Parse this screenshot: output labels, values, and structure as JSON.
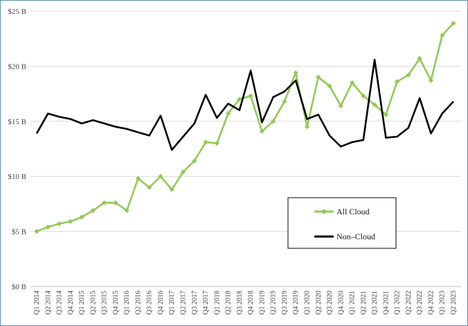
{
  "chart_data": {
    "type": "line",
    "title": "",
    "xlabel": "",
    "ylabel": "",
    "ylim": [
      0,
      25
    ],
    "y_ticks": [
      {
        "value": 0,
        "label": "$0 B"
      },
      {
        "value": 5,
        "label": "$5 B"
      },
      {
        "value": 10,
        "label": "$10 B"
      },
      {
        "value": 15,
        "label": "$15 B"
      },
      {
        "value": 20,
        "label": "$20 B"
      },
      {
        "value": 25,
        "label": "$25 B"
      }
    ],
    "grid": true,
    "legend": "lower-right",
    "categories": [
      "Q1 2014",
      "Q2 2014",
      "Q3 2014",
      "Q4 2014",
      "Q1 2015",
      "Q2 2015",
      "Q3 2015",
      "Q4 2015",
      "Q1 2016",
      "Q2 2016",
      "Q3 2016",
      "Q4 2016",
      "Q1 2017",
      "Q2 2017",
      "Q3 2017",
      "Q4 2017",
      "Q1 2018",
      "Q2 2018",
      "Q3 2018",
      "Q4 2018",
      "Q1 2019",
      "Q2 2019",
      "Q3 2019",
      "Q4 2019",
      "Q1 2020",
      "Q2 2020",
      "Q3 2020",
      "Q4 2020",
      "Q1 2021",
      "Q2 2021",
      "Q3 2021",
      "Q4 2021",
      "Q1 2022",
      "Q2 2022",
      "Q3 2022",
      "Q4 2022",
      "Q1 2023",
      "Q2 2023"
    ],
    "series": [
      {
        "name": "All Cloud",
        "color": "#92c955",
        "marker": "diamond",
        "values": [
          5.0,
          5.4,
          5.7,
          5.9,
          6.3,
          6.9,
          7.6,
          7.6,
          6.9,
          9.8,
          9.0,
          10.0,
          8.8,
          10.4,
          11.4,
          13.1,
          13.0,
          15.7,
          17.0,
          17.3,
          14.1,
          15.0,
          16.8,
          19.4,
          14.5,
          19.0,
          18.2,
          16.4,
          18.5,
          17.3,
          16.5,
          15.6,
          18.6,
          19.2,
          20.7,
          18.7,
          22.8,
          23.9
        ]
      },
      {
        "name": "Non-Cloud",
        "color": "#000000",
        "marker": "none",
        "values": [
          13.9,
          15.7,
          15.4,
          15.2,
          14.8,
          15.1,
          14.8,
          14.5,
          14.3,
          14.0,
          13.7,
          15.5,
          12.4,
          13.6,
          14.8,
          17.4,
          15.3,
          16.6,
          16.0,
          19.6,
          14.9,
          17.2,
          17.7,
          18.7,
          15.2,
          15.6,
          13.7,
          12.7,
          13.1,
          13.3,
          20.6,
          13.5,
          13.6,
          14.4,
          17.1,
          13.9,
          15.7,
          16.8
        ]
      }
    ],
    "legend_labels": [
      "All Cloud",
      "Non–Cloud"
    ]
  }
}
